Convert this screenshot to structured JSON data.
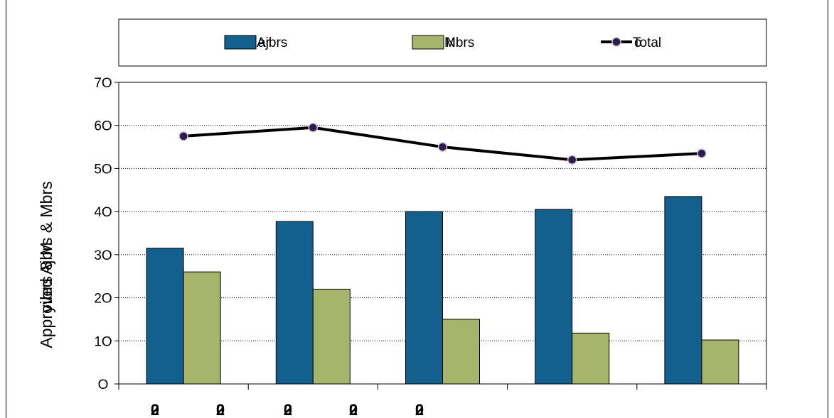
{
  "chart_data": {
    "type": "bar",
    "categories": [
      "2",
      "2",
      "2",
      "",
      ""
    ],
    "category_labels_overprint": [
      [
        "2",
        "0"
      ],
      [
        "2",
        "0"
      ],
      [
        "2",
        "0"
      ],
      [
        "2",
        "0"
      ],
      [
        "2",
        "0"
      ]
    ],
    "yticks": [
      "0",
      "10",
      "20",
      "30",
      "40",
      "50",
      "60",
      "70"
    ],
    "ytick_display": [
      "O",
      "1O",
      "2O",
      "3O",
      "4O",
      "5O",
      "6O",
      "7O"
    ],
    "ylim": [
      0,
      70
    ],
    "ylabel": "Approved Ajbrs & Mbrs",
    "series": [
      {
        "name": "Ajbrs",
        "kind": "bar",
        "color": "#135f8e",
        "values": [
          31.5,
          37.7,
          40,
          40.5,
          43.5
        ]
      },
      {
        "name": "Mbrs",
        "kind": "bar",
        "color": "#a6b56b",
        "values": [
          26,
          22,
          15,
          11.8,
          10.2
        ]
      },
      {
        "name": "Total",
        "kind": "line",
        "color": "#000000",
        "marker_color": "#2b1f4a",
        "values": [
          57.5,
          59.5,
          55,
          52,
          53.5
        ]
      }
    ],
    "legend_position": "top",
    "grid": true
  },
  "legend": {
    "items": [
      {
        "label": "Ajbrs",
        "overprint": "ar",
        "color": "#135f8e",
        "kind": "bar"
      },
      {
        "label": "Mbrs",
        "overprint": "N",
        "color": "#a6b56b",
        "kind": "bar"
      },
      {
        "label": "Total",
        "overprint": "o",
        "color": "#000000",
        "kind": "line"
      }
    ]
  }
}
